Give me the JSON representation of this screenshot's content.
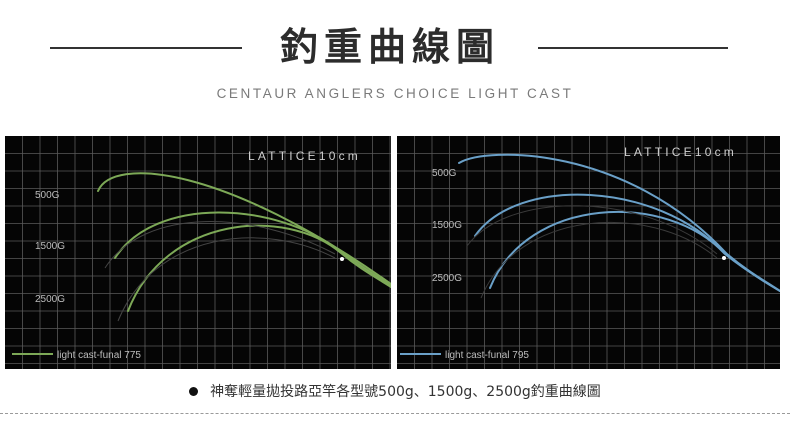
{
  "header": {
    "title": "釣重曲線圖",
    "subtitle": "CENTAUR ANGLERS CHOICE LIGHT CAST"
  },
  "caption": "神奪輕量拋投路亞竿各型號500g、1500g、2500g釣重曲線圖",
  "chart_data": [
    {
      "type": "line",
      "grid_label": "LATTICE10cm",
      "legend": "light cast-funal 775",
      "color": "#7da957",
      "loads": [
        "500G",
        "1500G",
        "2500G"
      ]
    },
    {
      "type": "line",
      "grid_label": "LATTICE10cm",
      "legend": "light cast-funal 795",
      "color": "#6aa0c8",
      "loads": [
        "500G",
        "1500G",
        "2500G"
      ]
    }
  ]
}
